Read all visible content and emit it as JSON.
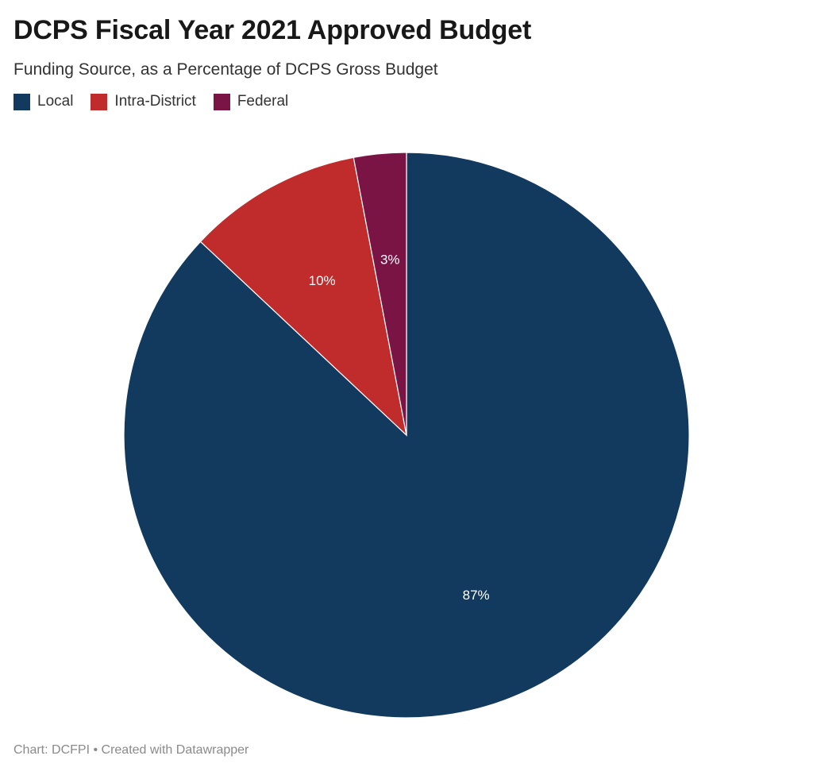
{
  "header": {
    "title": "DCPS Fiscal Year 2021 Approved Budget",
    "subtitle": "Funding Source, as a Percentage of DCPS Gross Budget"
  },
  "legend": {
    "items": [
      {
        "label": "Local",
        "color": "#123a5e"
      },
      {
        "label": "Intra-District",
        "color": "#c02b2b"
      },
      {
        "label": "Federal",
        "color": "#7a1445"
      }
    ]
  },
  "chart_data": {
    "type": "pie",
    "title": "DCPS Fiscal Year 2021 Approved Budget",
    "subtitle": "Funding Source, as a Percentage of DCPS Gross Budget",
    "legend_position": "top-left",
    "slices": [
      {
        "label": "Local",
        "value": 87,
        "display": "87%",
        "color": "#123a5e"
      },
      {
        "label": "Intra-District",
        "value": 10,
        "display": "10%",
        "color": "#c02b2b"
      },
      {
        "label": "Federal",
        "value": 3,
        "display": "3%",
        "color": "#7a1445"
      }
    ]
  },
  "footer": {
    "credit": "Chart: DCFPI • Created with Datawrapper"
  }
}
